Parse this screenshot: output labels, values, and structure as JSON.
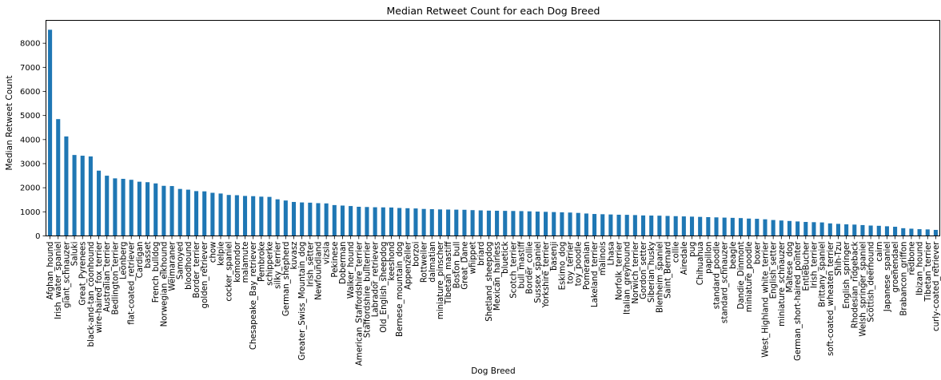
{
  "chart_data": {
    "type": "bar",
    "title": "Median Retweet Count for each Dog Breed",
    "xlabel": "Dog Breed",
    "ylabel": "Median Retweet Count",
    "ylim": [
      0,
      8950
    ],
    "yticks": [
      0,
      1000,
      2000,
      3000,
      4000,
      5000,
      6000,
      7000,
      8000
    ],
    "bar_color": "#1f77b4",
    "categories": [
      "Afghan_hound",
      "Irish_water_spaniel",
      "giant_schnauzer",
      "Saluki",
      "Great_Pyrenees",
      "black-and-tan_coonhound",
      "wire-haired_fox_terrier",
      "Australian_terrier",
      "Bedlington_terrier",
      "Leonberg",
      "flat-coated_retriever",
      "Cardigan",
      "basset",
      "French_bulldog",
      "Norwegian_elkhound",
      "Weimaraner",
      "Samoyed",
      "bloodhound",
      "Border_terrier",
      "golden_retriever",
      "chow",
      "kelpie",
      "cocker_spaniel",
      "komondor",
      "malamute",
      "Chesapeake_Bay_retriever",
      "Pembroke",
      "schipperke",
      "silky_terrier",
      "German_shepherd",
      "kuvasz",
      "Greater_Swiss_Mountain_dog",
      "Irish_setter",
      "Newfoundland",
      "vizsla",
      "Pekinese",
      "Doberman",
      "Walker_hound",
      "American_Staffordshire_terrier",
      "Staffordshire_bullterrier",
      "Labrador_retriever",
      "Old_English_sheepdog",
      "keeshond",
      "Bernese_mountain_dog",
      "Appenzeller",
      "borzoi",
      "Rottweiler",
      "dalmatian",
      "miniature_pinscher",
      "Tibetan_mastiff",
      "Boston_bull",
      "Great_Dane",
      "whippet",
      "briard",
      "Shetland_sheepdog",
      "Mexican_hairless",
      "bluetick",
      "Scotch_terrier",
      "bull_mastiff",
      "Border_collie",
      "Sussex_spaniel",
      "Yorkshire_terrier",
      "basenji",
      "Eskimo_dog",
      "toy_terrier",
      "toy_poodle",
      "Pomeranian",
      "Lakeland_terrier",
      "malinois",
      "Lhasa",
      "Norfolk_terrier",
      "Italian_greyhound",
      "Norwich_terrier",
      "Gordon_setter",
      "Siberian_husky",
      "Blenheim_spaniel",
      "Saint_Bernard",
      "collie",
      "Airedale",
      "pug",
      "Chihuahua",
      "papillon",
      "standard_poodle",
      "standard_schnauzer",
      "beagle",
      "Dandie_Dinmont",
      "miniature_poodle",
      "boxer",
      "West_Highland_white_terrier",
      "English_setter",
      "miniature_schnauzer",
      "Maltese_dog",
      "German_short-haired_pointer",
      "EntleBucher",
      "Irish_terrier",
      "Brittany_spaniel",
      "soft-coated_wheaten_terrier",
      "Shih-Tzu",
      "English_springer",
      "Rhodesian_ridgeback",
      "Welsh_springer_spaniel",
      "Scottish_deerhound",
      "cairn",
      "Japanese_spaniel",
      "groenendael",
      "Brabancon_griffon",
      "redbone",
      "Ibizan_hound",
      "Tibetan_terrier",
      "curly-coated_retriever"
    ],
    "values": [
      8560,
      4850,
      4130,
      3360,
      3330,
      3300,
      2710,
      2500,
      2390,
      2370,
      2330,
      2250,
      2230,
      2180,
      2080,
      2070,
      1950,
      1920,
      1860,
      1850,
      1790,
      1760,
      1700,
      1690,
      1660,
      1650,
      1630,
      1620,
      1520,
      1470,
      1410,
      1390,
      1380,
      1360,
      1350,
      1280,
      1260,
      1240,
      1210,
      1200,
      1190,
      1185,
      1180,
      1160,
      1150,
      1140,
      1120,
      1110,
      1100,
      1095,
      1090,
      1085,
      1070,
      1060,
      1050,
      1045,
      1040,
      1035,
      1030,
      1020,
      1010,
      1000,
      990,
      980,
      970,
      955,
      930,
      910,
      900,
      890,
      880,
      875,
      865,
      850,
      845,
      840,
      830,
      820,
      810,
      800,
      790,
      780,
      770,
      760,
      750,
      740,
      720,
      710,
      690,
      660,
      640,
      620,
      600,
      580,
      570,
      560,
      520,
      500,
      480,
      470,
      450,
      430,
      420,
      400,
      380,
      320,
      300,
      280,
      270,
      250
    ]
  }
}
